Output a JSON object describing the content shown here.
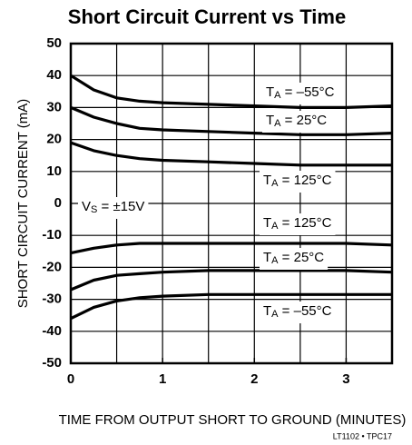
{
  "chart_data": {
    "type": "line",
    "title": "Short Circuit Current vs Time",
    "xlabel": "TIME FROM OUTPUT SHORT TO GROUND (MINUTES)",
    "ylabel": "SHORT CIRCUIT CURRENT (mA)",
    "footnote": "LT1102 • TPC17",
    "x": [
      0,
      0.25,
      0.5,
      0.75,
      1,
      1.5,
      2,
      2.5,
      3,
      3.5
    ],
    "xlim": [
      0,
      3.5
    ],
    "xticks": [
      0,
      1,
      2,
      3
    ],
    "xgrid": [
      0.5,
      1,
      1.5,
      2,
      2.5,
      3
    ],
    "ylim": [
      -50,
      50
    ],
    "yticks": [
      50,
      40,
      30,
      20,
      10,
      0,
      -10,
      -20,
      -30,
      -40,
      -50
    ],
    "grid": true,
    "color": "#000000",
    "series": [
      {
        "label": {
          "symbol": "T",
          "subscript": "A",
          "text": " = –55°C"
        },
        "values": [
          40,
          35.5,
          33,
          32,
          31.5,
          31,
          30.5,
          30,
          30,
          30.5
        ]
      },
      {
        "label": {
          "symbol": "T",
          "subscript": "A",
          "text": " = 25°C"
        },
        "values": [
          30,
          27,
          25,
          23.5,
          23,
          22.5,
          22,
          21.5,
          21.5,
          22
        ]
      },
      {
        "label": {
          "symbol": "T",
          "subscript": "A",
          "text": " = 125°C"
        },
        "values": [
          19,
          16.5,
          15,
          14,
          13.5,
          13,
          12.5,
          12,
          12,
          12
        ]
      },
      {
        "label": {
          "symbol": "T",
          "subscript": "A",
          "text": " = 125°C"
        },
        "values": [
          -15.5,
          -14,
          -13,
          -12.5,
          -12.5,
          -12.5,
          -12.5,
          -12.5,
          -12.5,
          -13
        ]
      },
      {
        "label": {
          "symbol": "T",
          "subscript": "A",
          "text": " = 25°C"
        },
        "values": [
          -27,
          -24,
          -22.5,
          -22,
          -21.5,
          -21,
          -21,
          -21,
          -21,
          -21.5
        ]
      },
      {
        "label": {
          "symbol": "T",
          "subscript": "A",
          "text": " = –55°C"
        },
        "values": [
          -36,
          -32.5,
          -30.5,
          -29.5,
          -29,
          -28.5,
          -28.5,
          -28.5,
          -28.5,
          -28.5
        ]
      }
    ],
    "supply_label": {
      "symbol": "V",
      "subscript": "S",
      "text": " = ±15V"
    }
  }
}
